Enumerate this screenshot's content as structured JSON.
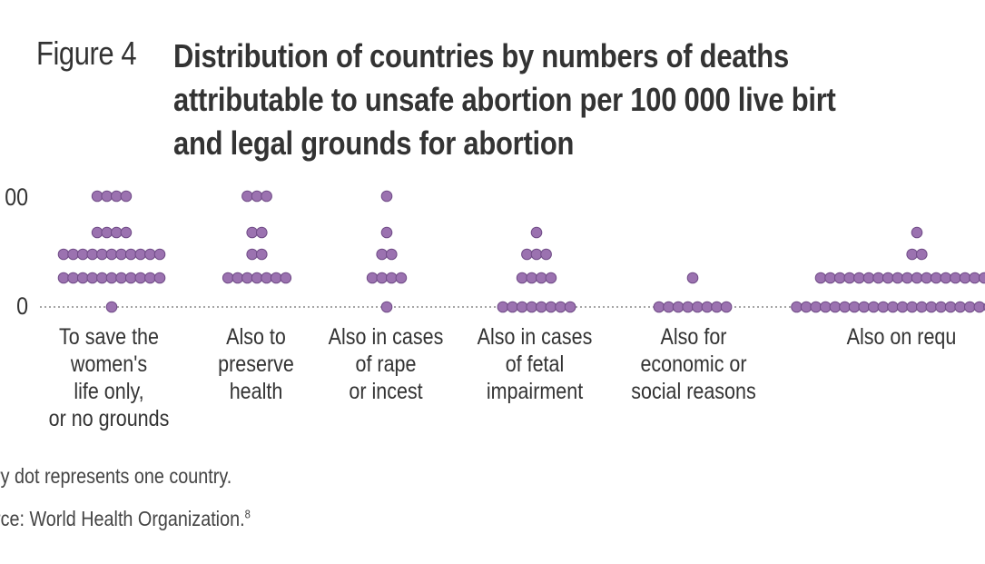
{
  "figure_label": "Figure 4",
  "title": "Distribution of countries by numbers of deaths\nattributable to unsafe abortion per 100 000 live birt\nand legal grounds for abortion",
  "footnotes": {
    "dot_note": "ry dot represents one country.",
    "source": "rce: World Health Organization.",
    "source_ref": "8"
  },
  "colors": {
    "dot": "#9b72b0",
    "dot_stroke": "#6f4a86",
    "baseline": "#888888"
  },
  "chart_data": {
    "type": "dot",
    "title": "Distribution of countries by numbers of deaths attributable to unsafe abortion per 100 000 live birt and legal grounds for abortion",
    "y_tick_labels": [
      "0",
      "00"
    ],
    "categories": [
      "To save the\nwomen's\nlife only,\nor no grounds",
      "Also to\npreserve\nhealth",
      "Also in cases\nof rape\nor incest",
      "Also in cases\nof fetal\nimpairment",
      "Also for\neconomic or\nsocial reasons",
      "Also on requ"
    ],
    "dot_counts_by_level": [
      {
        "level_0": 1,
        "level_1": 11,
        "level_2": 11,
        "level_3": 4,
        "level_4": 4
      },
      {
        "level_0": 0,
        "level_1": 7,
        "level_2": 2,
        "level_3": 2,
        "level_4": 3
      },
      {
        "level_0": 1,
        "level_1": 4,
        "level_2": 2,
        "level_3": 1,
        "level_4": 1
      },
      {
        "level_0": 8,
        "level_1": 4,
        "level_2": 3,
        "level_3": 1,
        "level_4": 0
      },
      {
        "level_0": 8,
        "level_1": 1,
        "level_2": 0,
        "level_3": 0,
        "level_4": 0
      },
      {
        "level_0": 26,
        "level_1": 21,
        "level_2": 2,
        "level_3": 1,
        "level_4": 0
      }
    ],
    "legend": "none",
    "grid": false
  }
}
